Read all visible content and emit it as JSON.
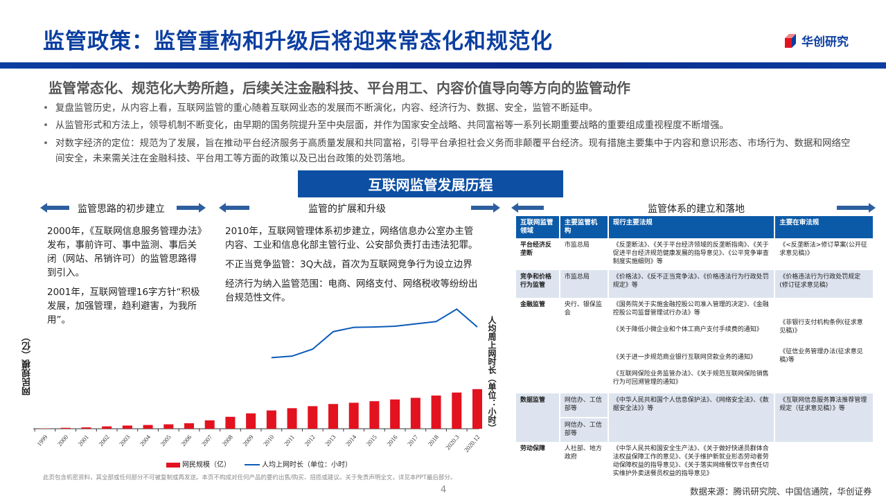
{
  "header": {
    "title": "监管政策：监管重构和升级后将迎来常态化和规范化",
    "logo_text": "华创研究"
  },
  "subheading": "监管常态化、规范化大势所趋，后续关注金融科技、平台用工、内容价值导向等方向的监管动作",
  "bullets": [
    "复盘监管历史，从内容上看，互联网监管的重心随着互联网业态的发展而不断演化，内容、经济行为、数据、安全，监管不断延申。",
    "从监管形式和方法上，领导机制不断变化，由早期的国务院提升至中央层面，并作为国家安全战略、共同富裕等一系列长期重要战略的重要组成重视程度不断增强。",
    "对数字经济的定位：规范为了发展，旨在推动平台经济服务于高质量发展和共同富裕，引导平台承担社会义务而非颠覆平台经济。现有措施主要集中于内容和意识形态、市场行为、数据和网络空间安全，未来需关注在金融科技、平台用工等方面的政策以及已出台政策的处罚落地。"
  ],
  "timeline_title": "互联网监管发展历程",
  "phases": [
    "监管思路的初步建立",
    "监管的扩展和升级",
    "监管体系的建立和落地"
  ],
  "phase1_paras": [
    "2000年，《互联网信息服务管理办法》发布，事前许可、事中监测、事后关闭（网站、吊销许可）的监管思路得到引入。",
    "2001年，互联网管理16字方针“积极发展，加强管理，趋利避害，为我所用”。"
  ],
  "phase2_paras": [
    "2010年，互联网管理体系初步建立，网络信息办公室办主管内容、工业和信息化部主管行业、公安部负责打击违法犯罪。",
    "不正当竞争监管：3Q大战，首次为互联网竞争行为设立边界",
    "经济行为纳入监管范围：电商、网络支付、网络税收等纷纷出台规范性文件。"
  ],
  "table": {
    "headers": [
      "互联网监管领域",
      "主要监管机构",
      "现行主要法规",
      "主要在审法规"
    ],
    "rows": [
      {
        "area": "平台经济反垄断",
        "agency": "市监总局",
        "current": "《反垄断法》、《关于平台经济领域的反垄断指南》、《关于促进平台经济规范健康发展的指导意见》、《公平竞争审查制度实施细则》等",
        "pending": "《<反垄断法>修订草案(公开征求意见稿)》"
      },
      {
        "area": "竞争和价格行为监管",
        "agency": "市监总局",
        "current": "《价格法》、《反不正当竞争法》、《价格违法行为行政处罚规定》等",
        "pending": "《价格违法行为行政处罚规定(修订征求意见稿)"
      },
      {
        "area": "金融监管",
        "agency": "央行、银保监会",
        "current": [
          "《国务院关于实施金融控股公司准入管理的决定》、《金融控股公司监督管理试行办法》等",
          "《关于降低小微企业和个体工商户支付手续费的通知》",
          "《关于进一步规范商业银行互联网贷款业务的通知》",
          "《互联网保险业务监管办法》、《关于规范互联网保险销售行为可回溯管理的通知》"
        ],
        "pending": [
          "《非银行支付机构条例(征求意见稿)》",
          "《征信业务管理办法(征求意见稿)等"
        ]
      },
      {
        "area": "数据监管",
        "agency": [
          "网信办、工信部等",
          "网信办、工信部等"
        ],
        "current": "《中华人民共和国个人信息保护法》、《网络安全法》、《数据安全法》》等",
        "pending": "《互联网信息服务算法推荐管理规定（征求意见稿）》等"
      },
      {
        "area": "劳动保障",
        "agency": "人社部、地方政府",
        "current": "《中华人民共和国安全生产法》、《关于做好快递员群体合法权益保障工作的意见》、《关于维护新就业形态劳动者劳动保障权益的指导意见》、《关于落实网络餐饮平台责任切实维护外卖送餐员权益的指导意见》",
        "pending": ""
      }
    ]
  },
  "chart_data": {
    "type": "bar+line",
    "categories": [
      "1999",
      "2000",
      "2001",
      "2002",
      "2003",
      "2004",
      "2005",
      "2006",
      "2007",
      "2008",
      "2009",
      "2010",
      "2011",
      "2012",
      "2013",
      "2014",
      "2015",
      "2016",
      "2017",
      "2018",
      "2020.3",
      "2020.12"
    ],
    "series": [
      {
        "name": "网民规模（亿）",
        "type": "bar",
        "color": "#e3121f",
        "values": [
          0.09,
          0.23,
          0.34,
          0.59,
          0.8,
          0.94,
          1.11,
          1.37,
          2.1,
          2.98,
          3.84,
          4.57,
          5.13,
          5.64,
          6.18,
          6.49,
          6.88,
          7.31,
          7.72,
          8.29,
          9.04,
          9.89
        ]
      },
      {
        "name": "人均上网时长（单位：小时）",
        "type": "line",
        "color": "#0b5ab8",
        "values": [
          null,
          null,
          null,
          null,
          null,
          null,
          null,
          null,
          null,
          null,
          null,
          18.3,
          18.7,
          20.5,
          25.0,
          26.1,
          26.2,
          26.4,
          27.0,
          27.6,
          30.8,
          26.2
        ]
      }
    ],
    "ylabel": "网民规模（亿）",
    "y2label": "人均周上网时长（单位：小时）",
    "ylim": [
      0,
      32
    ],
    "y2lim": [
      0,
      33
    ],
    "grid": false,
    "legend": "bottom"
  },
  "footer": {
    "disclaimer": "此页包含机密资料，其全部或任何部分不可被复制或再发送。本页不构成对任何产品的要约出售/购买、招揽或建议。关于免责声明全文，详见本PPT最后部分。",
    "page": "4",
    "source": "数据来源：腾讯研究院、中国信通院，华创证券"
  }
}
